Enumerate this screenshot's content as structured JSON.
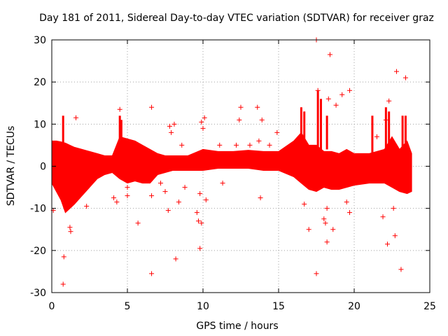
{
  "chart_data": {
    "type": "scatter",
    "title": "Day 181 of 2011, Sidereal Day-to-day VTEC variation (SDTVAR) for receiver graz",
    "xlabel": "GPS time / hours",
    "ylabel": "SDTVAR / TECUs",
    "xlim": [
      0,
      25
    ],
    "ylim": [
      -30,
      30
    ],
    "xticks": [
      0,
      5,
      10,
      15,
      20,
      25
    ],
    "yticks": [
      -30,
      -20,
      -10,
      0,
      10,
      20,
      30
    ],
    "xtick_labels": [
      "0",
      "5",
      "10",
      "15",
      "20",
      "25"
    ],
    "ytick_labels": [
      "-30",
      "-20",
      "-10",
      "0",
      "10",
      "20",
      "30"
    ],
    "grid": true,
    "marker": "+",
    "series_color": "#ff0000",
    "band": {
      "note": "dense band of points, approximate envelope (hours, TECU)",
      "x": [
        0.0,
        0.3,
        0.6,
        0.9,
        1.2,
        1.5,
        2.0,
        2.5,
        3.0,
        3.5,
        4.0,
        4.5,
        5.0,
        5.5,
        6.0,
        6.5,
        7.0,
        7.5,
        8.0,
        9.0,
        10.0,
        11.0,
        12.0,
        13.0,
        14.0,
        15.0,
        16.0,
        16.5,
        17.0,
        17.5,
        18.0,
        18.5,
        19.0,
        19.5,
        20.0,
        21.0,
        22.0,
        22.5,
        23.0,
        23.5,
        23.8
      ],
      "upper": [
        6.0,
        6.0,
        5.8,
        5.5,
        5.0,
        4.5,
        4.0,
        3.5,
        3.0,
        2.5,
        2.5,
        7.0,
        6.5,
        6.0,
        5.0,
        4.0,
        3.0,
        2.5,
        2.5,
        2.5,
        4.0,
        3.5,
        3.5,
        3.8,
        3.5,
        3.5,
        6.0,
        8.0,
        5.0,
        5.0,
        3.5,
        3.5,
        3.0,
        4.0,
        3.0,
        3.0,
        4.0,
        7.0,
        4.0,
        6.0,
        3.0
      ],
      "lower": [
        -4.0,
        -6.0,
        -8.0,
        -11.0,
        -10.0,
        -9.0,
        -7.0,
        -5.0,
        -3.0,
        -2.0,
        -1.5,
        -3.0,
        -4.0,
        -3.5,
        -4.0,
        -4.0,
        -2.0,
        -1.5,
        -1.0,
        -1.0,
        -1.0,
        -0.5,
        -0.5,
        -0.5,
        -1.0,
        -1.0,
        -2.5,
        -4.0,
        -5.5,
        -6.0,
        -5.0,
        -5.5,
        -5.5,
        -5.0,
        -4.5,
        -4.0,
        -4.0,
        -5.0,
        -6.0,
        -6.5,
        -6.0
      ]
    },
    "spikes": [
      {
        "x": 4.5,
        "ymin": 2,
        "ymax": 12
      },
      {
        "x": 4.6,
        "ymin": 2,
        "ymax": 11
      },
      {
        "x": 16.5,
        "ymin": 3,
        "ymax": 14
      },
      {
        "x": 16.7,
        "ymin": 3,
        "ymax": 13
      },
      {
        "x": 17.6,
        "ymin": 4,
        "ymax": 18
      },
      {
        "x": 17.8,
        "ymin": 4,
        "ymax": 16
      },
      {
        "x": 18.2,
        "ymin": 4,
        "ymax": 12
      },
      {
        "x": 21.2,
        "ymin": 3,
        "ymax": 12
      },
      {
        "x": 22.1,
        "ymin": 3,
        "ymax": 14
      },
      {
        "x": 22.3,
        "ymin": 3,
        "ymax": 13
      },
      {
        "x": 23.2,
        "ymin": 3,
        "ymax": 12
      },
      {
        "x": 23.4,
        "ymin": 3,
        "ymax": 12
      },
      {
        "x": 0.75,
        "ymin": 5,
        "ymax": 12
      }
    ],
    "outliers": [
      {
        "x": 0.1,
        "y": -10.5
      },
      {
        "x": 0.8,
        "y": -21.5
      },
      {
        "x": 0.75,
        "y": -28
      },
      {
        "x": 1.2,
        "y": -14.5
      },
      {
        "x": 1.25,
        "y": -15.5
      },
      {
        "x": 1.6,
        "y": 11.5
      },
      {
        "x": 2.3,
        "y": -9.5
      },
      {
        "x": 4.1,
        "y": -7.5
      },
      {
        "x": 4.3,
        "y": -8.5
      },
      {
        "x": 4.5,
        "y": 13.5
      },
      {
        "x": 5.0,
        "y": -5
      },
      {
        "x": 5.0,
        "y": -7
      },
      {
        "x": 5.7,
        "y": -13.5
      },
      {
        "x": 6.6,
        "y": 14
      },
      {
        "x": 6.6,
        "y": -25.5
      },
      {
        "x": 6.6,
        "y": -7
      },
      {
        "x": 7.2,
        "y": -4
      },
      {
        "x": 7.5,
        "y": -6
      },
      {
        "x": 7.7,
        "y": -10.5
      },
      {
        "x": 7.8,
        "y": 9.5
      },
      {
        "x": 7.9,
        "y": 8
      },
      {
        "x": 8.1,
        "y": 10
      },
      {
        "x": 8.2,
        "y": -22
      },
      {
        "x": 8.4,
        "y": -8.5
      },
      {
        "x": 8.6,
        "y": 5
      },
      {
        "x": 8.8,
        "y": -5
      },
      {
        "x": 9.6,
        "y": -11
      },
      {
        "x": 9.8,
        "y": -19.5
      },
      {
        "x": 9.9,
        "y": -13.5
      },
      {
        "x": 9.7,
        "y": -13
      },
      {
        "x": 9.9,
        "y": 10.5
      },
      {
        "x": 10.1,
        "y": 11.5
      },
      {
        "x": 10.0,
        "y": 9
      },
      {
        "x": 9.8,
        "y": -6.5
      },
      {
        "x": 10.2,
        "y": -8
      },
      {
        "x": 11.1,
        "y": 5
      },
      {
        "x": 11.3,
        "y": -4
      },
      {
        "x": 12.2,
        "y": 5
      },
      {
        "x": 12.5,
        "y": 14
      },
      {
        "x": 12.4,
        "y": 11
      },
      {
        "x": 13.1,
        "y": 5
      },
      {
        "x": 13.6,
        "y": 14
      },
      {
        "x": 13.7,
        "y": 6
      },
      {
        "x": 13.8,
        "y": -7.5
      },
      {
        "x": 13.9,
        "y": 11
      },
      {
        "x": 14.4,
        "y": 5
      },
      {
        "x": 14.9,
        "y": 8
      },
      {
        "x": 16.7,
        "y": -9
      },
      {
        "x": 17.0,
        "y": -15
      },
      {
        "x": 17.5,
        "y": -25.5
      },
      {
        "x": 17.5,
        "y": 30
      },
      {
        "x": 17.6,
        "y": 18
      },
      {
        "x": 18.0,
        "y": -12.5
      },
      {
        "x": 18.1,
        "y": -13.5
      },
      {
        "x": 18.2,
        "y": -18
      },
      {
        "x": 18.2,
        "y": -10
      },
      {
        "x": 18.4,
        "y": 26.5
      },
      {
        "x": 18.3,
        "y": 16
      },
      {
        "x": 18.6,
        "y": -15
      },
      {
        "x": 18.8,
        "y": 14.5
      },
      {
        "x": 19.2,
        "y": 17
      },
      {
        "x": 19.5,
        "y": -8.5
      },
      {
        "x": 19.7,
        "y": 18
      },
      {
        "x": 19.7,
        "y": -11
      },
      {
        "x": 21.5,
        "y": 7
      },
      {
        "x": 22.2,
        "y": -18.5
      },
      {
        "x": 22.3,
        "y": 15.5
      },
      {
        "x": 22.6,
        "y": -10
      },
      {
        "x": 22.7,
        "y": -16.5
      },
      {
        "x": 22.8,
        "y": 22.5
      },
      {
        "x": 23.1,
        "y": -24.5
      },
      {
        "x": 23.4,
        "y": 21
      },
      {
        "x": 22.1,
        "y": 11
      },
      {
        "x": 21.9,
        "y": -12
      }
    ]
  }
}
